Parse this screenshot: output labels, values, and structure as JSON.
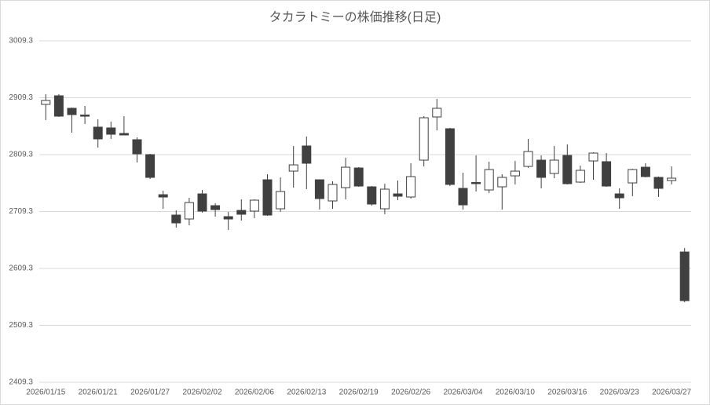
{
  "chart_data": {
    "type": "candlestick",
    "title": "タカラトミーの株価推移(日足)",
    "categories": [
      "2026/01/15",
      null,
      null,
      null,
      "2026/01/21",
      null,
      null,
      null,
      "2026/01/27",
      null,
      null,
      null,
      "2026/02/02",
      null,
      null,
      null,
      "2026/02/06",
      null,
      null,
      null,
      "2026/02/13",
      null,
      null,
      null,
      "2026/02/19",
      null,
      null,
      null,
      "2026/02/26",
      null,
      null,
      null,
      "2026/03/04",
      null,
      null,
      null,
      "2026/03/10",
      null,
      null,
      null,
      "2026/03/16",
      null,
      null,
      null,
      "2026/03/23",
      null,
      null,
      null,
      "2026/03/27",
      null
    ],
    "open": [
      2897.6,
      2912.7,
      2890.7,
      2878.9,
      2857.6,
      2856.2,
      2846.5,
      2835.5,
      2809.3,
      2738.9,
      2703.1,
      2696.2,
      2740.3,
      2719.6,
      2700.3,
      2711.3,
      2710.0,
      2765.1,
      2714.1,
      2780.3,
      2824.5,
      2765.1,
      2727.9,
      2751.3,
      2785.8,
      2752.7,
      2714.1,
      2740.3,
      2734.8,
      2799.6,
      2875.5,
      2854.8,
      2750.0,
      2760.3,
      2747.2,
      2752.7,
      2772.0,
      2788.6,
      2799.6,
      2776.2,
      2807.9,
      2761.0,
      2798.2,
      2796.9,
      2740.3,
      2759.6,
      2787.2,
      2769.3,
      2763.8,
      2638.2
    ],
    "high": [
      2915.5,
      2915.5,
      2892.0,
      2894.8,
      2871.3,
      2867.2,
      2876.9,
      2839.6,
      2810.7,
      2745.8,
      2711.3,
      2733.4,
      2747.2,
      2723.8,
      2708.6,
      2730.7,
      2730.7,
      2774.8,
      2769.3,
      2824.5,
      2841.0,
      2765.1,
      2762.4,
      2803.8,
      2787.2,
      2754.1,
      2758.2,
      2763.8,
      2794.1,
      2876.9,
      2907.2,
      2856.2,
      2777.6,
      2807.9,
      2796.9,
      2774.8,
      2798.2,
      2836.9,
      2807.9,
      2824.5,
      2827.2,
      2790.0,
      2813.4,
      2812.0,
      2750.0,
      2784.5,
      2794.1,
      2770.7,
      2788.6,
      2645.1
    ],
    "low": [
      2870.0,
      2875.5,
      2847.9,
      2863.1,
      2821.7,
      2836.9,
      2843.8,
      2795.5,
      2766.5,
      2714.1,
      2681.0,
      2685.1,
      2707.2,
      2700.3,
      2676.9,
      2693.4,
      2697.6,
      2701.7,
      2708.6,
      2751.3,
      2748.6,
      2712.7,
      2714.1,
      2730.7,
      2752.7,
      2719.6,
      2704.5,
      2729.3,
      2732.0,
      2788.6,
      2852.0,
      2754.1,
      2712.7,
      2744.5,
      2741.7,
      2712.7,
      2756.9,
      2785.8,
      2750.0,
      2767.9,
      2756.9,
      2759.6,
      2765.1,
      2752.7,
      2714.1,
      2736.2,
      2769.3,
      2734.8,
      2756.9,
      2550.0
    ],
    "close": [
      2904.4,
      2876.9,
      2879.6,
      2877.6,
      2836.9,
      2845.1,
      2843.8,
      2810.7,
      2769.3,
      2734.8,
      2689.3,
      2725.1,
      2710.0,
      2712.7,
      2696.2,
      2704.5,
      2729.3,
      2703.1,
      2744.5,
      2791.3,
      2794.1,
      2732.0,
      2756.9,
      2787.2,
      2754.1,
      2722.4,
      2748.6,
      2736.2,
      2770.7,
      2874.1,
      2890.7,
      2756.9,
      2721.0,
      2758.9,
      2783.1,
      2769.3,
      2780.3,
      2814.8,
      2769.3,
      2799.6,
      2758.2,
      2781.7,
      2812.0,
      2754.1,
      2733.4,
      2783.1,
      2770.7,
      2750.0,
      2767.9,
      2552.7
    ],
    "up_color": "#ffffff",
    "down_color": "#404040",
    "ylim": [
      2409.3,
      3009.3
    ],
    "yticks": [
      2409.3,
      2509.3,
      2609.3,
      2709.3,
      2809.3,
      2909.3,
      3009.3
    ],
    "grid": true
  }
}
